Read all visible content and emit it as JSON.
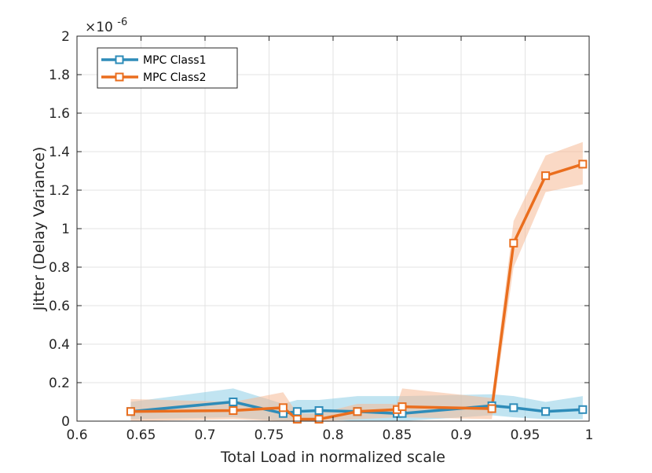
{
  "chart_data": {
    "type": "line",
    "xlabel": "Total Load in normalized scale",
    "ylabel": "Jitter (Delay Variance)",
    "exponent_label": "×10",
    "exponent_power": "-6",
    "xlim": [
      0.6,
      1.0
    ],
    "ylim": [
      0,
      2
    ],
    "x_ticks": [
      "0.6",
      "0.65",
      "0.7",
      "0.75",
      "0.8",
      "0.85",
      "0.9",
      "0.95",
      "1"
    ],
    "y_ticks": [
      "0",
      "0.2",
      "0.4",
      "0.6",
      "0.8",
      "1",
      "1.2",
      "1.4",
      "1.6",
      "1.8",
      "2"
    ],
    "grid": true,
    "legend_placement": "top-left",
    "series": [
      {
        "name": "MPC Class1",
        "color": "#2E8CB9",
        "band_color": "#8ECDE6",
        "x": [
          0.642,
          0.722,
          0.761,
          0.772,
          0.789,
          0.819,
          0.85,
          0.854,
          0.924,
          0.941,
          0.966,
          0.995
        ],
        "values": [
          0.05,
          0.1,
          0.04,
          0.05,
          0.055,
          0.05,
          0.04,
          0.04,
          0.08,
          0.07,
          0.05,
          0.06
        ],
        "upper": [
          0.1,
          0.17,
          0.09,
          0.11,
          0.11,
          0.13,
          0.13,
          0.13,
          0.14,
          0.13,
          0.1,
          0.13
        ],
        "lower": [
          0.01,
          0.02,
          0.0,
          0.0,
          0.01,
          0.0,
          0.0,
          0.0,
          0.03,
          0.02,
          0.01,
          0.01
        ]
      },
      {
        "name": "MPC Class2",
        "color": "#EA6E1E",
        "band_color": "#F6B995",
        "x": [
          0.642,
          0.722,
          0.761,
          0.772,
          0.789,
          0.819,
          0.85,
          0.854,
          0.924,
          0.941,
          0.966,
          0.995
        ],
        "values": [
          0.05,
          0.055,
          0.07,
          0.01,
          0.01,
          0.05,
          0.06,
          0.075,
          0.065,
          0.925,
          1.275,
          1.335
        ],
        "upper": [
          0.115,
          0.1,
          0.15,
          0.04,
          0.04,
          0.09,
          0.09,
          0.17,
          0.12,
          1.04,
          1.38,
          1.45
        ],
        "lower": [
          0.0,
          0.01,
          0.0,
          0.0,
          0.0,
          0.01,
          0.02,
          0.02,
          0.01,
          0.8,
          1.19,
          1.23
        ]
      }
    ]
  }
}
